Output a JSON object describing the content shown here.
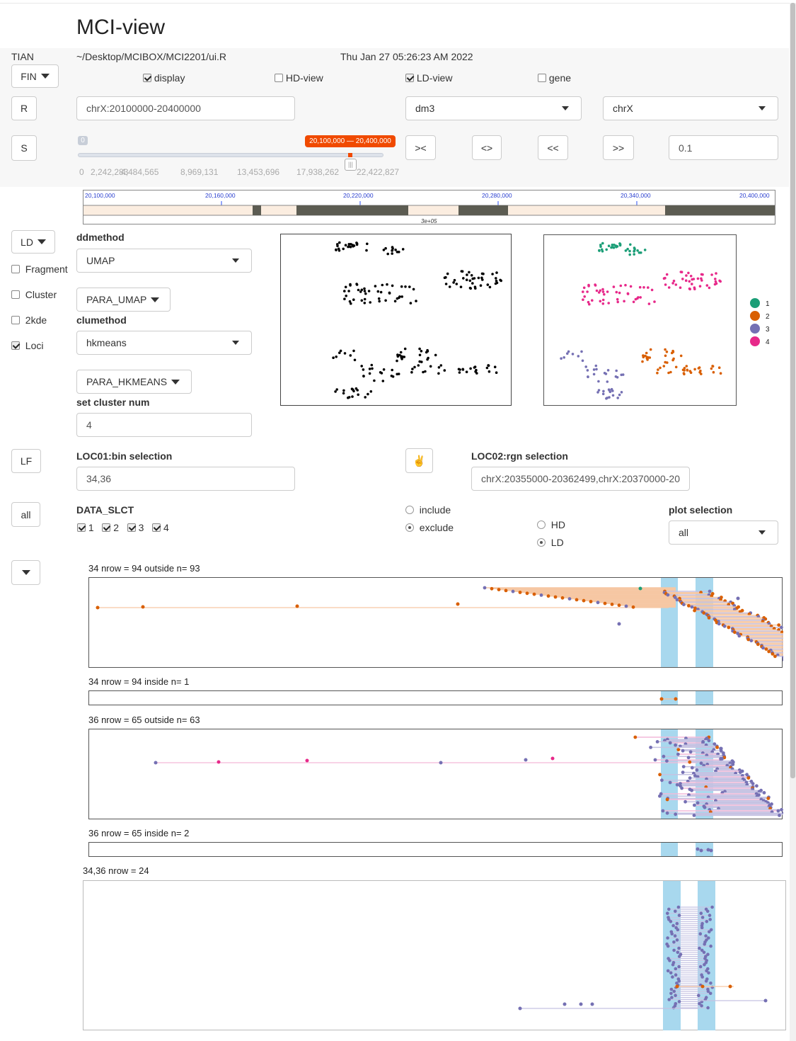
{
  "app": {
    "title": "MCI-view",
    "user": "TIAN",
    "path": "~/Desktop/MCIBOX/MCI2201/ui.R",
    "datetime": "Thu Jan 27 05:26:23 AM 2022"
  },
  "toolbar": {
    "fin_label": "FIN",
    "display_label": "display",
    "hdview_label": "HD-view",
    "ldview_label": "LD-view",
    "gene_label": "gene",
    "r_label": "R",
    "region_value": "chrX:20100000-20400000",
    "genome_value": "dm3",
    "chrom_value": "chrX",
    "s_label": "S",
    "slider_min_badge": "0",
    "slider_range_label": "20,100,000 — 20,400,000",
    "slider_ticks": [
      "0",
      "2,242,283",
      "4,484,565",
      "8,969,131",
      "13,453,696",
      "17,938,262",
      "22,422,827"
    ],
    "zoom_in": "><",
    "zoom_out": "<>",
    "shift_left": "<<",
    "shift_right": ">>",
    "step_value": "0.1"
  },
  "ruler": {
    "ticks": [
      "20,100,000",
      "20,160,000",
      "20,220,000",
      "20,280,000",
      "20,340,000",
      "20,400,000"
    ],
    "scale_label": "3e+05"
  },
  "ld": {
    "ld_label": "LD",
    "fragment_label": "Fragment",
    "cluster_label": "Cluster",
    "kde_label": "2kde",
    "loci_label": "Loci",
    "ddmethod_label": "ddmethod",
    "ddmethod_value": "UMAP",
    "para_umap_label": "PARA_UMAP",
    "clumethod_label": "clumethod",
    "clumethod_value": "hkmeans",
    "para_hkmeans_label": "PARA_HKMEANS",
    "clusternum_label": "set cluster num",
    "clusternum_value": "4",
    "legend": [
      {
        "label": "1",
        "color": "#1b9e77"
      },
      {
        "label": "2",
        "color": "#d95f02"
      },
      {
        "label": "3",
        "color": "#7570b3"
      },
      {
        "label": "4",
        "color": "#e7298a"
      }
    ]
  },
  "loc": {
    "lf_label": "LF",
    "loc01_label": "LOC01:bin selection",
    "loc01_value": "34,36",
    "loc02_label": "LOC02:rgn selection",
    "loc02_value": "chrX:20355000-20362499,chrX:20370000-20"
  },
  "data_slct": {
    "all_label": "all",
    "title": "DATA_SLCT",
    "items": [
      "1",
      "2",
      "3",
      "4"
    ],
    "include_label": "include",
    "exclude_label": "exclude",
    "hd_label": "HD",
    "ld_label": "LD",
    "plot_selection_label": "plot selection",
    "plot_selection_value": "all"
  },
  "plots": {
    "p1": "34 nrow = 94 outside n= 93",
    "p2": "34 nrow = 94 inside n= 1",
    "p3": "36 nrow = 65 outside n= 63",
    "p4": "36 nrow = 65 inside n= 2",
    "p5": "34,36 nrow = 24"
  },
  "colors": {
    "c1": "#1b9e77",
    "c2": "#d95f02",
    "c3": "#7570b3",
    "c4": "#e7298a",
    "highlight": "#a8d8ee"
  }
}
